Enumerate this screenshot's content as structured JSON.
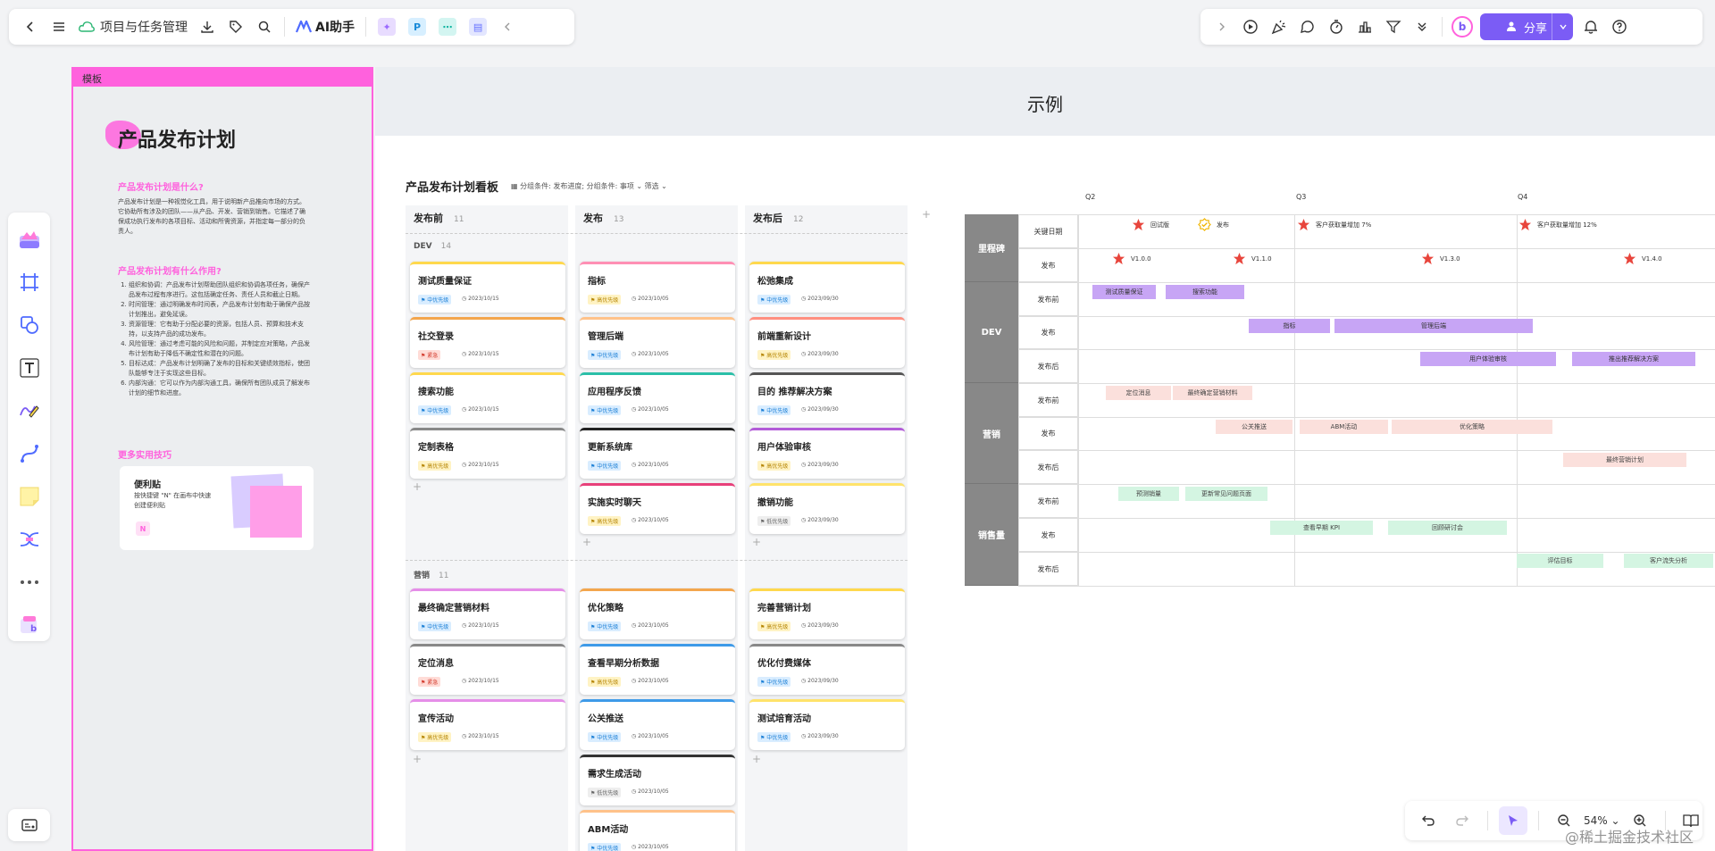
{
  "toolbar": {
    "doc_title": "项目与任务管理",
    "ai_label": "AI助手",
    "share_label": "分享"
  },
  "template_panel": {
    "tag": "模板",
    "title": "产品发布计划",
    "q1": "产品发布计划是什么?",
    "a1": "产品发布计划是一种视觉化工具，用于说明新产品推向市场的方式。它协助所有涉及的团队——从产品、开发、营销到销售。它描述了确保成功执行发布的各项目标、活动和所需资源，并指定每一部分的负责人。",
    "q2": "产品发布计划有什么作用?",
    "uses": [
      "组织和协调：产品发布计划帮助团队组织和协调各项任务，确保产品发布过程有序进行。这包括确定任务、责任人员和截止日期。",
      "时间管理：通过明确发布时间表，产品发布计划有助于确保产品按计划推出，避免延误。",
      "资源管理：它有助于分配必要的资源，包括人员、预算和技术支持，以支持产品的成功发布。",
      "风险管理：通过考虑可能的风险和问题，并制定应对策略，产品发布计划有助于降低不确定性和潜在的问题。",
      "目标达成：产品发布计划明确了发布的目标和关键绩效指标，使团队能够专注于实现这些目标。",
      "内部沟通：它可以作为内部沟通工具，确保所有团队成员了解发布计划的细节和进度。"
    ],
    "more_tips": "更多实用技巧",
    "tip_title": "便利贴",
    "tip_desc": "按快捷键 \"N\" 在画布中快速创建便利贴",
    "tip_key": "N"
  },
  "example": {
    "title": "示例",
    "board_title": "产品发布计划看板",
    "board_meta": "分组条件: 发布进度; 分组条件: 事项 ⌄    筛选 ⌄",
    "columns": [
      {
        "name": "发布前",
        "count": "11"
      },
      {
        "name": "发布",
        "count": "13"
      },
      {
        "name": "发布后",
        "count": "12"
      }
    ],
    "groups": [
      {
        "name": "DEV",
        "count": "14"
      },
      {
        "name": "营销",
        "count": "11"
      }
    ],
    "cards": {
      "c0": {
        "title": "测试质量保证",
        "prio": "中优先级",
        "date": "2023/10/15"
      },
      "c1": {
        "title": "社交登录",
        "prio": "紧急",
        "date": "2023/10/15"
      },
      "c2": {
        "title": "搜索功能",
        "prio": "中优先级",
        "date": "2023/10/15"
      },
      "c3": {
        "title": "定制表格",
        "prio": "高优先级",
        "date": "2023/10/15"
      },
      "c4": {
        "title": "指标",
        "prio": "高优先级",
        "date": "2023/10/05"
      },
      "c5": {
        "title": "管理后端",
        "prio": "中优先级",
        "date": "2023/10/05"
      },
      "c6": {
        "title": "应用程序反馈",
        "prio": "中优先级",
        "date": "2023/10/05"
      },
      "c7": {
        "title": "更新系统库",
        "prio": "中优先级",
        "date": "2023/10/05"
      },
      "c8": {
        "title": "实施实时聊天",
        "prio": "高优先级",
        "date": "2023/10/05"
      },
      "c9": {
        "title": "松弛集成",
        "prio": "中优先级",
        "date": "2023/09/30"
      },
      "c10": {
        "title": "前端重新设计",
        "prio": "高优先级",
        "date": "2023/09/30"
      },
      "c11": {
        "title": "目的 推荐解决方案",
        "prio": "中优先级",
        "date": "2023/09/30"
      },
      "c12": {
        "title": "用户体验审核",
        "prio": "高优先级",
        "date": "2023/09/30"
      },
      "c13": {
        "title": "撤销功能",
        "prio": "低优先级",
        "date": "2023/09/30"
      },
      "c14": {
        "title": "最终确定营销材料",
        "prio": "中优先级",
        "date": "2023/10/15"
      },
      "c15": {
        "title": "定位消息",
        "prio": "紧急",
        "date": "2023/10/15"
      },
      "c16": {
        "title": "宣传活动",
        "prio": "高优先级",
        "date": "2023/10/15"
      },
      "c17": {
        "title": "优化策略",
        "prio": "中优先级",
        "date": "2023/10/05"
      },
      "c18": {
        "title": "查看早期分析数据",
        "prio": "高优先级",
        "date": "2023/10/05"
      },
      "c19": {
        "title": "公关推送",
        "prio": "中优先级",
        "date": "2023/10/05"
      },
      "c20": {
        "title": "需求生成活动",
        "prio": "低优先级",
        "date": "2023/10/05"
      },
      "c21": {
        "title": "ABM活动",
        "prio": "中优先级",
        "date": "2023/10/05"
      },
      "c22": {
        "title": "完善营销计划",
        "prio": "高优先级",
        "date": "2023/09/30"
      },
      "c23": {
        "title": "优化付费媒体",
        "prio": "中优先级",
        "date": "2023/09/30"
      },
      "c24": {
        "title": "测试培育活动",
        "prio": "中优先级",
        "date": "2023/09/30"
      }
    },
    "gantt": {
      "quarters": [
        "Q2",
        "Q3",
        "Q4"
      ],
      "categories": [
        "里程碑",
        "DEV",
        "营销",
        "销售量"
      ],
      "rows": [
        "关键日期",
        "发布",
        "发布前",
        "发布",
        "发布后",
        "发布前",
        "发布",
        "发布后",
        "发布前",
        "发布",
        "发布后"
      ],
      "milestones": {
        "m0": "回试版",
        "m1": "发布",
        "m2": "客户获取量增加 7%",
        "m3": "客户获取量增加 12%",
        "v0": "V1.0.0",
        "v1": "V1.1.0",
        "v2": "V1.3.0",
        "v3": "V1.4.0"
      },
      "bars": {
        "b0": "测试质量保证",
        "b1": "搜索功能",
        "b2": "指标",
        "b3": "管理后端",
        "b4": "用户体验审核",
        "b5": "推出推荐解决方案",
        "b6": "定位消息",
        "b7": "最终确定营销材料",
        "b8": "公关推送",
        "b9": "ABM活动",
        "b10": "优化策略",
        "b11": "最终营销计划",
        "b12": "预测销量",
        "b13": "更新常见问题页面",
        "b14": "查看早期 KPI",
        "b15": "回顾研讨会",
        "b16": "评估目标",
        "b17": "客户流失分析"
      }
    }
  },
  "bottom": {
    "zoom": "54%"
  },
  "watermark": "@稀土掘金技术社区",
  "colors": {
    "accent": "#7b5cf5",
    "template_pink": "#ff61dd",
    "dev_bar": "#c7a5f5",
    "mkt_bar": "#fbe0dc",
    "sales_bar": "#d4f5e2"
  }
}
